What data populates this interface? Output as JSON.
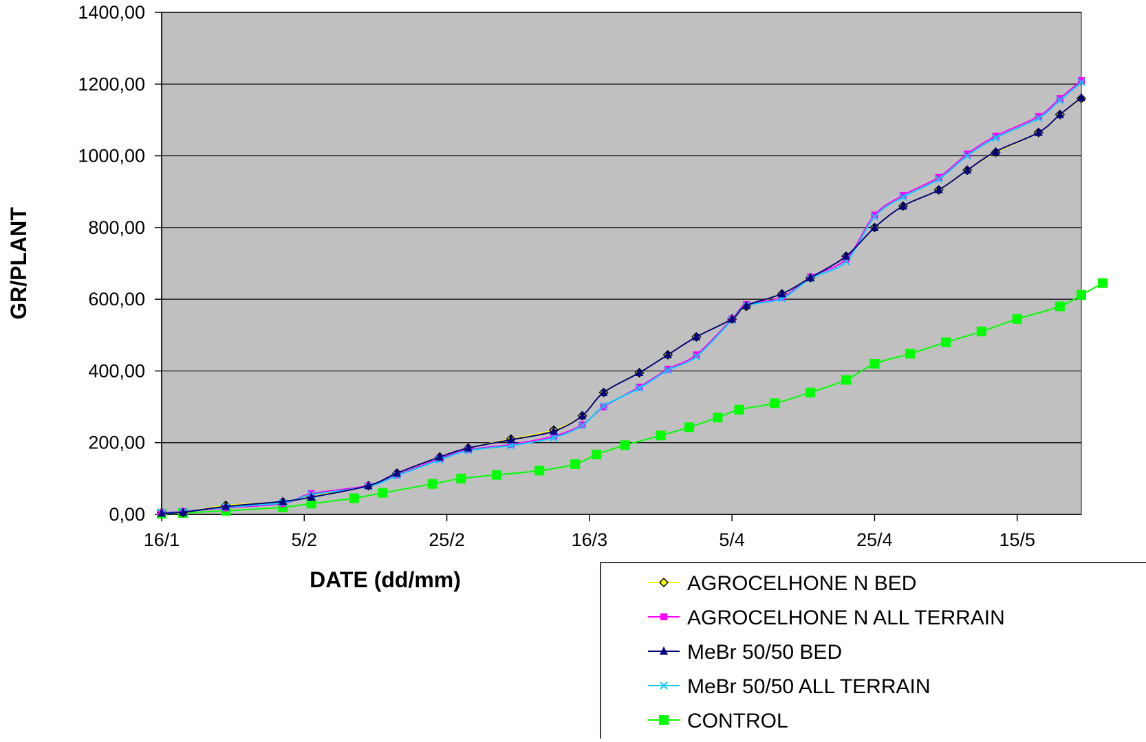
{
  "chart_data": {
    "type": "line",
    "title": "",
    "xlabel": "DATE  (dd/mm)",
    "ylabel": "GR/PLANT",
    "x_is_date": true,
    "xlim": [
      "2000-01-16",
      "2000-05-24"
    ],
    "ylim": [
      0,
      1400
    ],
    "y_ticks": [
      0,
      200,
      400,
      600,
      800,
      1000,
      1200,
      1400
    ],
    "y_tick_labels": [
      "0,00",
      "200,00",
      "400,00",
      "600,00",
      "800,00",
      "1000,00",
      "1200,00",
      "1400,00"
    ],
    "x_ticks": [
      "2000-01-16",
      "2000-02-05",
      "2000-02-25",
      "2000-03-16",
      "2000-04-05",
      "2000-04-25",
      "2000-05-15"
    ],
    "x_tick_labels": [
      "16/1",
      "5/2",
      "25/2",
      "16/3",
      "5/4",
      "25/4",
      "15/5"
    ],
    "grid": true,
    "legend_position": "bottom-right",
    "plot_background": "#c0c0c0",
    "series": [
      {
        "name": "AGROCELHONE N BED",
        "color": "#ffff00",
        "marker": "diamond",
        "x": [
          "2000-01-16",
          "2000-01-19",
          "2000-01-25",
          "2000-02-02",
          "2000-02-06",
          "2000-02-14",
          "2000-02-18",
          "2000-02-24",
          "2000-02-28",
          "2000-03-05",
          "2000-03-11",
          "2000-03-15",
          "2000-03-18",
          "2000-03-23",
          "2000-03-27",
          "2000-03-31",
          "2000-04-05",
          "2000-04-07",
          "2000-04-12",
          "2000-04-16",
          "2000-04-21",
          "2000-04-25",
          "2000-04-29",
          "2000-05-04",
          "2000-05-08",
          "2000-05-12",
          "2000-05-18",
          "2000-05-21",
          "2000-05-24"
        ],
        "y": [
          5,
          5,
          25,
          35,
          50,
          80,
          115,
          160,
          185,
          210,
          235,
          275,
          340,
          395,
          445,
          495,
          545,
          580,
          615,
          660,
          720,
          800,
          860,
          905,
          960,
          1010,
          1065,
          1115,
          1160
        ]
      },
      {
        "name": "AGROCELHONE N  ALL TERRAIN",
        "color": "#ff00ff",
        "marker": "square",
        "x": [
          "2000-01-16",
          "2000-01-19",
          "2000-01-25",
          "2000-02-02",
          "2000-02-06",
          "2000-02-14",
          "2000-02-18",
          "2000-02-24",
          "2000-02-28",
          "2000-03-05",
          "2000-03-11",
          "2000-03-15",
          "2000-03-18",
          "2000-03-23",
          "2000-03-27",
          "2000-03-31",
          "2000-04-05",
          "2000-04-07",
          "2000-04-12",
          "2000-04-16",
          "2000-04-21",
          "2000-04-25",
          "2000-04-29",
          "2000-05-04",
          "2000-05-08",
          "2000-05-12",
          "2000-05-18",
          "2000-05-21",
          "2000-05-24"
        ],
        "y": [
          5,
          8,
          18,
          30,
          58,
          80,
          110,
          155,
          180,
          195,
          218,
          250,
          300,
          355,
          405,
          445,
          545,
          585,
          605,
          662,
          712,
          835,
          890,
          940,
          1005,
          1055,
          1110,
          1160,
          1210
        ]
      },
      {
        "name": "MeBr 50/50 BED",
        "color": "#000080",
        "marker": "triangle",
        "x": [
          "2000-01-16",
          "2000-01-19",
          "2000-01-25",
          "2000-02-02",
          "2000-02-06",
          "2000-02-14",
          "2000-02-18",
          "2000-02-24",
          "2000-02-28",
          "2000-03-05",
          "2000-03-11",
          "2000-03-15",
          "2000-03-18",
          "2000-03-23",
          "2000-03-27",
          "2000-03-31",
          "2000-04-05",
          "2000-04-07",
          "2000-04-12",
          "2000-04-16",
          "2000-04-21",
          "2000-04-25",
          "2000-04-29",
          "2000-05-04",
          "2000-05-08",
          "2000-05-12",
          "2000-05-18",
          "2000-05-21",
          "2000-05-24"
        ],
        "y": [
          3,
          6,
          22,
          36,
          48,
          80,
          115,
          160,
          185,
          208,
          232,
          275,
          340,
          395,
          445,
          495,
          545,
          582,
          615,
          660,
          720,
          800,
          860,
          905,
          960,
          1012,
          1065,
          1115,
          1162
        ]
      },
      {
        "name": "MeBr 50/50 ALL TERRAIN",
        "color": "#00ccff",
        "marker": "x",
        "x": [
          "2000-01-16",
          "2000-01-19",
          "2000-01-25",
          "2000-02-02",
          "2000-02-06",
          "2000-02-14",
          "2000-02-18",
          "2000-02-24",
          "2000-02-28",
          "2000-03-05",
          "2000-03-11",
          "2000-03-15",
          "2000-03-18",
          "2000-03-23",
          "2000-03-27",
          "2000-03-31",
          "2000-04-05",
          "2000-04-07",
          "2000-04-12",
          "2000-04-16",
          "2000-04-21",
          "2000-04-25",
          "2000-04-29",
          "2000-05-04",
          "2000-05-08",
          "2000-05-12",
          "2000-05-18",
          "2000-05-21",
          "2000-05-24"
        ],
        "y": [
          4,
          7,
          20,
          32,
          55,
          78,
          108,
          152,
          178,
          192,
          214,
          248,
          302,
          352,
          402,
          440,
          542,
          582,
          602,
          658,
          705,
          830,
          885,
          935,
          1000,
          1050,
          1105,
          1155,
          1205
        ]
      },
      {
        "name": "CONTROL",
        "color": "#00ff00",
        "marker": "square-large",
        "x": [
          "2000-01-16",
          "2000-01-19",
          "2000-01-25",
          "2000-02-02",
          "2000-02-06",
          "2000-02-12",
          "2000-02-16",
          "2000-02-23",
          "2000-02-27",
          "2000-03-03",
          "2000-03-09",
          "2000-03-14",
          "2000-03-17",
          "2000-03-21",
          "2000-03-26",
          "2000-03-30",
          "2000-04-03",
          "2000-04-06",
          "2000-04-11",
          "2000-04-16",
          "2000-04-21",
          "2000-04-25",
          "2000-04-30",
          "2000-05-05",
          "2000-05-10",
          "2000-05-15",
          "2000-05-21",
          "2000-05-24",
          "2000-05-27"
        ],
        "y": [
          2,
          4,
          10,
          20,
          30,
          45,
          60,
          85,
          100,
          110,
          122,
          140,
          167,
          193,
          220,
          243,
          270,
          292,
          310,
          340,
          375,
          420,
          448,
          480,
          510,
          545,
          580,
          612,
          645
        ]
      }
    ]
  }
}
